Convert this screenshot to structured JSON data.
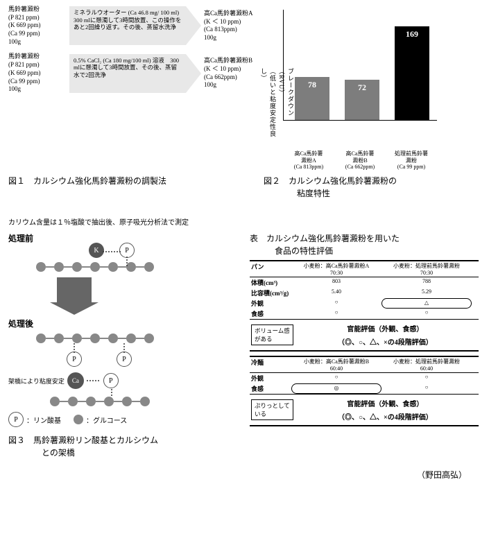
{
  "fig1": {
    "start_a": "馬鈴薯澱粉\n(P 821 ppm)\n(K 669 ppm)\n(Ca 99 ppm)\n100g",
    "arrow_a": "ミネラルウオーター (Ca 46.8 mg/ 100 ml)　300 mlに懸濁して3時間放置、この操作をあと2回繰り返す。その後、蒸留水洗浄",
    "end_a": "高Ca馬鈴薯澱粉A\n(K ＜ 10 ppm)\n(Ca 813ppm)\n100g",
    "start_b": "馬鈴薯澱粉\n(P 821 ppm)\n(K 669 ppm)\n(Ca 99 ppm)\n100g",
    "arrow_b": "0.5% CaCl₂ (Ca 180 mg/100 ml) 溶液　300 mlに懸濁して3時間放置、その後、蒸留水で2回洗浄",
    "end_b": "高Ca馬鈴薯澱粉B\n(K ＜ 10 ppm)\n(Ca 662ppm)\n100g",
    "caption": "図１　カルシウム強化馬鈴薯澱粉の調製法",
    "subcaption": "カリウム含量は１％塩酸で抽出後、原子吸光分析法で測定"
  },
  "fig2": {
    "yaxis": "ブレークダウン（RVU）\n（低いと粘度安定性良し）",
    "ymax": 200,
    "bars": [
      {
        "label": "78",
        "value": 78,
        "color": "#7d7d7d",
        "xlabel": "高Ca馬鈴薯\n澱粉A\n(Ca 813ppm)"
      },
      {
        "label": "72",
        "value": 72,
        "color": "#7d7d7d",
        "xlabel": "高Ca馬鈴薯\n澱粉B\n(Ca 662ppm)"
      },
      {
        "label": "169",
        "value": 169,
        "color": "#000000",
        "xlabel": "処理前馬鈴薯\n澱粉\n(Ca 99 ppm)"
      }
    ],
    "caption": "図２　カルシウム強化馬鈴薯澱粉の\n　　　　粘度特性"
  },
  "fig3": {
    "before": "処理前",
    "after": "処理後",
    "bridge_note": "架橋により粘度安定",
    "legend_p": "：リン酸基",
    "legend_g": "：グルコース",
    "caption": "図３　馬鈴薯澱粉リン酸基とカルシウム\n　　　　との架橋"
  },
  "table": {
    "title": "表　カルシウム強化馬鈴薯澱粉を用いた\n　　　食品の特性評価",
    "pan": {
      "name": "パン",
      "h2": "小麦粉：高Ca馬鈴薯澱粉A\n70:30",
      "h3": "小麦粉：処理前馬鈴薯澱粉\n70:30",
      "r1": {
        "k": "体積(cm³)",
        "a": "803",
        "b": "788"
      },
      "r2": {
        "k": "比容積(cm³/g)",
        "a": "5.40",
        "b": "5.29"
      },
      "r3": {
        "k": "外観",
        "a": "○",
        "b": "△"
      },
      "r4": {
        "k": "食感",
        "a": "○",
        "b": "○"
      },
      "callout": "ボリューム感\nがある",
      "eval1": "官能評価（外観、食感）",
      "eval2": "（◎、○、△、×の4段階評価）"
    },
    "reimen": {
      "name": "冷麺",
      "h2": "小麦粉：高Ca馬鈴薯澱粉B\n60:40",
      "h3": "小麦粉：処理前馬鈴薯澱粉\n60:40",
      "r1": {
        "k": "外観",
        "a": "○",
        "b": "○"
      },
      "r2": {
        "k": "食感",
        "a": "◎",
        "b": "○"
      },
      "callout": "ぷりっとして\nいる",
      "eval1": "官能評価（外観、食感）",
      "eval2": "（◎、○、△、×の4段階評価）"
    }
  },
  "author": "（野田高弘）"
}
